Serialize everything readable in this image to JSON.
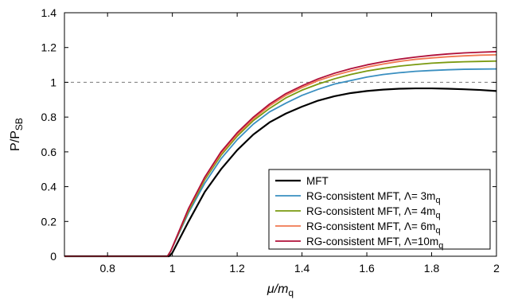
{
  "chart_data": {
    "type": "line",
    "xlim": [
      0.667,
      2.0
    ],
    "ylim": [
      0,
      1.4
    ],
    "x_ticks": [
      "0.8",
      "1",
      "1.2",
      "1.4",
      "1.6",
      "1.8",
      "2"
    ],
    "x_tick_values": [
      0.8,
      1.0,
      1.2,
      1.4,
      1.6,
      1.8,
      2.0
    ],
    "y_ticks": [
      "0",
      "0.2",
      "0.4",
      "0.6",
      "0.8",
      "1",
      "1.2",
      "1.4"
    ],
    "y_tick_values": [
      0,
      0.2,
      0.4,
      0.6,
      0.8,
      1.0,
      1.2,
      1.4
    ],
    "xlabel": {
      "main": "μ/m",
      "sub": "q"
    },
    "ylabel": {
      "main": "P/P",
      "sub": "SB"
    },
    "grid": false,
    "reference_line": {
      "y": 1.0,
      "style": "dashed",
      "color": "#888888"
    },
    "legend_position": "bottom-right",
    "series": [
      {
        "name": "MFT",
        "color": "#000000",
        "x": [
          0.667,
          0.9,
          0.99,
          1.0,
          1.05,
          1.1,
          1.15,
          1.2,
          1.25,
          1.3,
          1.35,
          1.4,
          1.45,
          1.5,
          1.55,
          1.6,
          1.65,
          1.7,
          1.75,
          1.8,
          1.85,
          1.9,
          1.95,
          2.0
        ],
        "y": [
          0,
          0,
          0,
          0.02,
          0.2,
          0.37,
          0.5,
          0.61,
          0.7,
          0.77,
          0.82,
          0.86,
          0.895,
          0.92,
          0.938,
          0.95,
          0.958,
          0.963,
          0.965,
          0.965,
          0.963,
          0.96,
          0.956,
          0.95
        ]
      },
      {
        "name": "RG-consistent MFT, Λ=  3m",
        "name_sub": "q",
        "color": "#3a8fc0",
        "x": [
          0.667,
          0.9,
          0.985,
          0.995,
          1.05,
          1.1,
          1.15,
          1.2,
          1.25,
          1.3,
          1.35,
          1.4,
          1.45,
          1.5,
          1.55,
          1.6,
          1.65,
          1.7,
          1.75,
          1.8,
          1.85,
          1.9,
          1.95,
          2.0
        ],
        "y": [
          0,
          0,
          0,
          0.03,
          0.25,
          0.42,
          0.56,
          0.67,
          0.76,
          0.83,
          0.88,
          0.925,
          0.96,
          0.99,
          1.01,
          1.03,
          1.045,
          1.055,
          1.063,
          1.068,
          1.072,
          1.075,
          1.076,
          1.077
        ]
      },
      {
        "name": "RG-consistent MFT, Λ=  4m",
        "name_sub": "q",
        "color": "#7a9a10",
        "x": [
          0.667,
          0.9,
          0.985,
          0.995,
          1.05,
          1.1,
          1.15,
          1.2,
          1.25,
          1.3,
          1.35,
          1.4,
          1.45,
          1.5,
          1.55,
          1.6,
          1.65,
          1.7,
          1.75,
          1.8,
          1.85,
          1.9,
          1.95,
          2.0
        ],
        "y": [
          0,
          0,
          0,
          0.03,
          0.26,
          0.44,
          0.58,
          0.69,
          0.78,
          0.85,
          0.91,
          0.955,
          0.99,
          1.02,
          1.045,
          1.065,
          1.08,
          1.093,
          1.102,
          1.11,
          1.115,
          1.118,
          1.12,
          1.122
        ]
      },
      {
        "name": "RG-consistent MFT, Λ=  6m",
        "name_sub": "q",
        "color": "#f07850",
        "x": [
          0.667,
          0.9,
          0.985,
          0.995,
          1.05,
          1.1,
          1.15,
          1.2,
          1.25,
          1.3,
          1.35,
          1.4,
          1.45,
          1.5,
          1.55,
          1.6,
          1.65,
          1.7,
          1.75,
          1.8,
          1.85,
          1.9,
          1.95,
          2.0
        ],
        "y": [
          0,
          0,
          0,
          0.03,
          0.27,
          0.45,
          0.59,
          0.7,
          0.79,
          0.865,
          0.925,
          0.97,
          1.01,
          1.04,
          1.065,
          1.087,
          1.105,
          1.12,
          1.132,
          1.14,
          1.147,
          1.152,
          1.156,
          1.158
        ]
      },
      {
        "name": "RG-consistent MFT, Λ=10m",
        "name_sub": "q",
        "color": "#b0103a",
        "x": [
          0.667,
          0.9,
          0.985,
          0.995,
          1.05,
          1.1,
          1.15,
          1.2,
          1.25,
          1.3,
          1.35,
          1.4,
          1.45,
          1.5,
          1.55,
          1.6,
          1.65,
          1.7,
          1.75,
          1.8,
          1.85,
          1.9,
          1.95,
          2.0
        ],
        "y": [
          0,
          0,
          0,
          0.03,
          0.275,
          0.455,
          0.6,
          0.71,
          0.8,
          0.875,
          0.935,
          0.98,
          1.02,
          1.052,
          1.078,
          1.1,
          1.118,
          1.133,
          1.145,
          1.155,
          1.163,
          1.169,
          1.173,
          1.176
        ]
      }
    ]
  }
}
